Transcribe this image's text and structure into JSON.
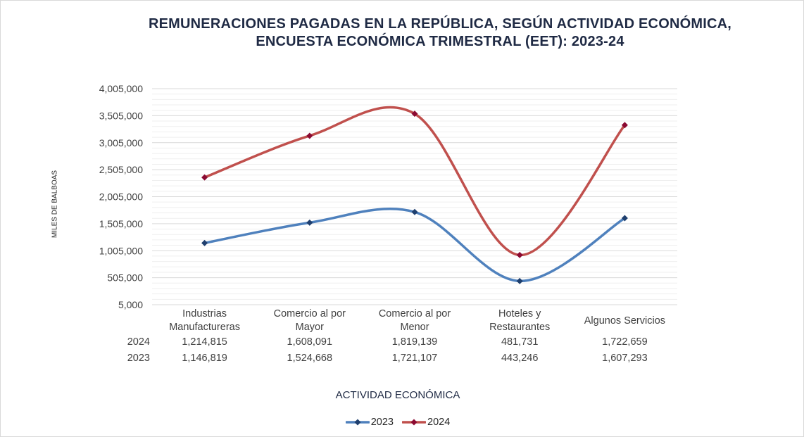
{
  "chart_data": {
    "type": "line",
    "stacked": true,
    "title_lines": [
      "REMUNERACIONES  PAGADAS  EN  LA REPÚBLICA,  SEGÚN  ACTIVIDAD  ECONÓMICA,",
      "ENCUESTA  ECONÓMICA  TRIMESTRAL  (EET):  2023-24"
    ],
    "xlabel": "ACTIVIDAD ECONÓMICA",
    "ylabel": "MILES DE BALBOAS",
    "categories": [
      [
        "Industrias",
        "Manufactureras"
      ],
      [
        "Comercio al por",
        "Mayor"
      ],
      [
        "Comercio al por",
        "Menor"
      ],
      [
        "Hoteles y",
        "Restaurantes"
      ],
      [
        "Algunos Servicios"
      ]
    ],
    "ylim": [
      5000,
      4005000
    ],
    "yticks": [
      "4,005,000",
      "3,505,000",
      "3,005,000",
      "2,505,000",
      "2,005,000",
      "1,505,000",
      "1,005,000",
      "505,000",
      "5,000"
    ],
    "ytick_values": [
      4005000,
      3505000,
      3005000,
      2505000,
      2005000,
      1505000,
      1005000,
      505000,
      5000
    ],
    "minor_step": 100000,
    "grid": true,
    "smooth": true,
    "series": [
      {
        "name": "2023",
        "color": "#4f81bd",
        "marker_color": "#1f3f6e",
        "values": [
          1146819,
          1524668,
          1721107,
          443246,
          1607293
        ],
        "labels": [
          "1,146,819",
          "1,524,668",
          "1,721,107",
          "443,246",
          "1,607,293"
        ]
      },
      {
        "name": "2024",
        "color": "#c0504d",
        "marker_color": "#8b0a32",
        "values": [
          1214815,
          1608091,
          1819139,
          481731,
          1722659
        ],
        "labels": [
          "1,214,815",
          "1,608,091",
          "1,819,139",
          "481,731",
          "1,722,659"
        ]
      }
    ],
    "data_table_rows": [
      "2024",
      "2023"
    ],
    "legend": [
      "2023",
      "2024"
    ],
    "legend_position": "bottom"
  }
}
